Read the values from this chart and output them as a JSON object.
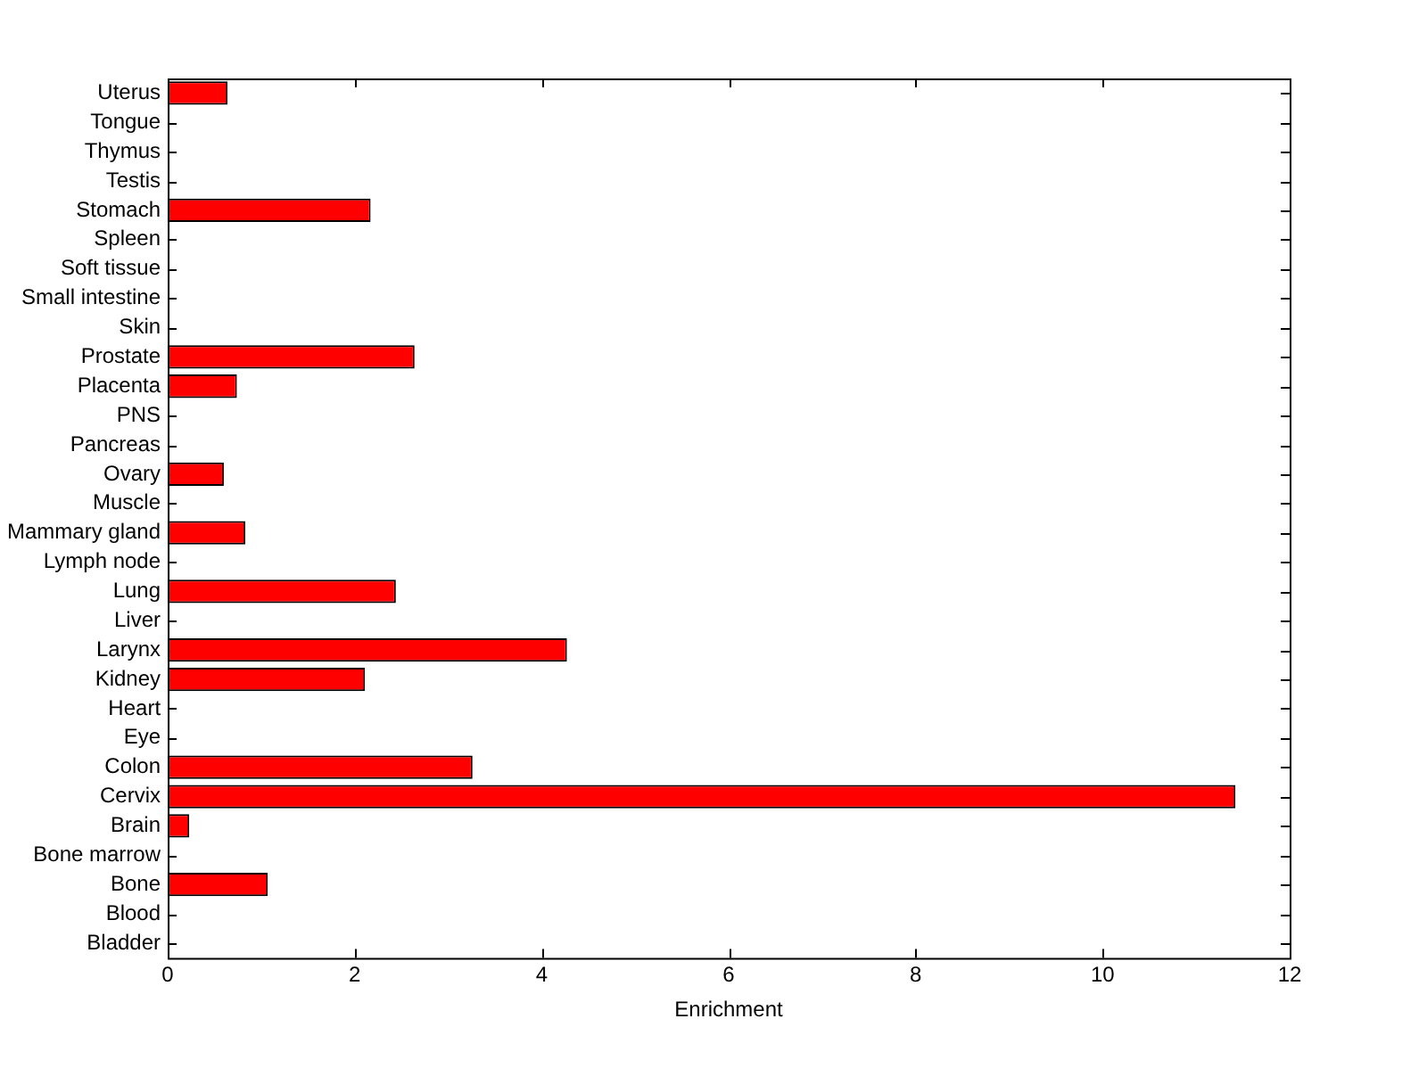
{
  "chart_data": {
    "type": "bar",
    "orientation": "horizontal",
    "xlabel": "Enrichment",
    "categories": [
      "Uterus",
      "Tongue",
      "Thymus",
      "Testis",
      "Stomach",
      "Spleen",
      "Soft tissue",
      "Small intestine",
      "Skin",
      "Prostate",
      "Placenta",
      "PNS",
      "Pancreas",
      "Ovary",
      "Muscle",
      "Mammary gland",
      "Lymph node",
      "Lung",
      "Liver",
      "Larynx",
      "Kidney",
      "Heart",
      "Eye",
      "Colon",
      "Cervix",
      "Brain",
      "Bone marrow",
      "Bone",
      "Blood",
      "Bladder"
    ],
    "values": [
      0.64,
      0,
      0,
      0,
      2.17,
      0,
      0,
      0,
      0,
      2.64,
      0.74,
      0,
      0,
      0.6,
      0,
      0.83,
      0,
      2.44,
      0,
      4.27,
      2.11,
      0,
      0,
      3.26,
      11.42,
      0.23,
      0,
      1.07,
      0,
      0
    ],
    "color": "#ff0000",
    "xlim": [
      0,
      12
    ],
    "xticks": [
      0,
      2,
      4,
      6,
      8,
      10,
      12
    ],
    "grid": false,
    "legend": false
  }
}
